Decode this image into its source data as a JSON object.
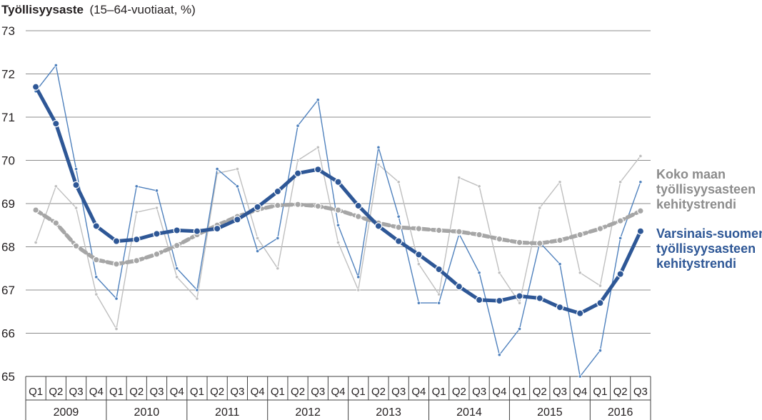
{
  "chart_data": {
    "type": "line",
    "title": "Työllisyysaste",
    "subtitle": "(15–64-vuotiaat, %)",
    "ylim": [
      65,
      73
    ],
    "yticks": [
      65,
      66,
      67,
      68,
      69,
      70,
      71,
      72,
      73
    ],
    "grid": true,
    "quarters": [
      "Q1",
      "Q2",
      "Q3",
      "Q4",
      "Q1",
      "Q2",
      "Q3",
      "Q4",
      "Q1",
      "Q2",
      "Q3",
      "Q4",
      "Q1",
      "Q2",
      "Q3",
      "Q4",
      "Q1",
      "Q2",
      "Q3",
      "Q4",
      "Q1",
      "Q2",
      "Q3",
      "Q4",
      "Q1",
      "Q2",
      "Q3",
      "Q4",
      "Q1",
      "Q2",
      "Q3"
    ],
    "years": [
      {
        "label": "2009",
        "quarters": 4
      },
      {
        "label": "2010",
        "quarters": 4
      },
      {
        "label": "2011",
        "quarters": 4
      },
      {
        "label": "2012",
        "quarters": 4
      },
      {
        "label": "2013",
        "quarters": 4
      },
      {
        "label": "2014",
        "quarters": 4
      },
      {
        "label": "2015",
        "quarters": 4
      },
      {
        "label": "2016",
        "quarters": 3
      }
    ],
    "series": [
      {
        "name": "",
        "role": "koko-maa-raw",
        "color": "#bfbfbf",
        "values": [
          68.1,
          69.4,
          68.9,
          66.9,
          66.1,
          68.8,
          68.9,
          67.3,
          66.8,
          69.7,
          69.8,
          68.2,
          67.5,
          70.0,
          70.3,
          68.1,
          67.0,
          69.9,
          69.5,
          67.6,
          66.9,
          69.6,
          69.4,
          67.4,
          66.7,
          68.9,
          69.5,
          67.4,
          67.1,
          69.5,
          70.1
        ]
      },
      {
        "name": "",
        "role": "varsinais-suomi-raw",
        "color": "#4f81bd",
        "values": [
          71.6,
          72.2,
          69.8,
          67.3,
          66.8,
          69.4,
          69.3,
          67.5,
          67.0,
          69.8,
          69.4,
          67.9,
          68.2,
          70.8,
          71.4,
          68.5,
          67.3,
          70.3,
          68.7,
          66.7,
          66.7,
          68.3,
          67.4,
          65.5,
          66.1,
          68.1,
          67.6,
          65.0,
          65.6,
          68.2,
          69.5
        ]
      },
      {
        "name": "Koko maan työllisyysasteen kehitystrendi",
        "role": "koko-maa-trend",
        "color": "#a6a6a6",
        "values": [
          68.85,
          68.55,
          68.02,
          67.7,
          67.6,
          67.68,
          67.83,
          68.03,
          68.28,
          68.5,
          68.7,
          68.86,
          68.96,
          68.98,
          68.94,
          68.85,
          68.7,
          68.55,
          68.45,
          68.42,
          68.38,
          68.35,
          68.28,
          68.18,
          68.1,
          68.08,
          68.15,
          68.28,
          68.42,
          68.6,
          68.83
        ]
      },
      {
        "name": "Varsinais-suomen työllisyysasteen kehitystrendi",
        "role": "varsinais-suomi-trend",
        "color": "#2e5796",
        "values": [
          71.7,
          70.85,
          69.43,
          68.48,
          68.13,
          68.17,
          68.3,
          68.38,
          68.36,
          68.42,
          68.63,
          68.92,
          69.28,
          69.7,
          69.79,
          69.5,
          68.95,
          68.48,
          68.13,
          67.82,
          67.48,
          67.08,
          66.77,
          66.75,
          66.86,
          66.81,
          66.6,
          66.46,
          66.7,
          67.37,
          68.36
        ]
      }
    ],
    "legend": {
      "placement": "right",
      "lines": [
        [
          "Koko maan",
          "työllisyysasteen",
          "kehitystrendi"
        ],
        [
          "Varsinais-suomen",
          "työllisyysasteen",
          "kehitystrendi"
        ]
      ]
    }
  },
  "colors": {
    "grid": "#8c8c8c",
    "axis": "#404040",
    "text": "#231f20"
  }
}
